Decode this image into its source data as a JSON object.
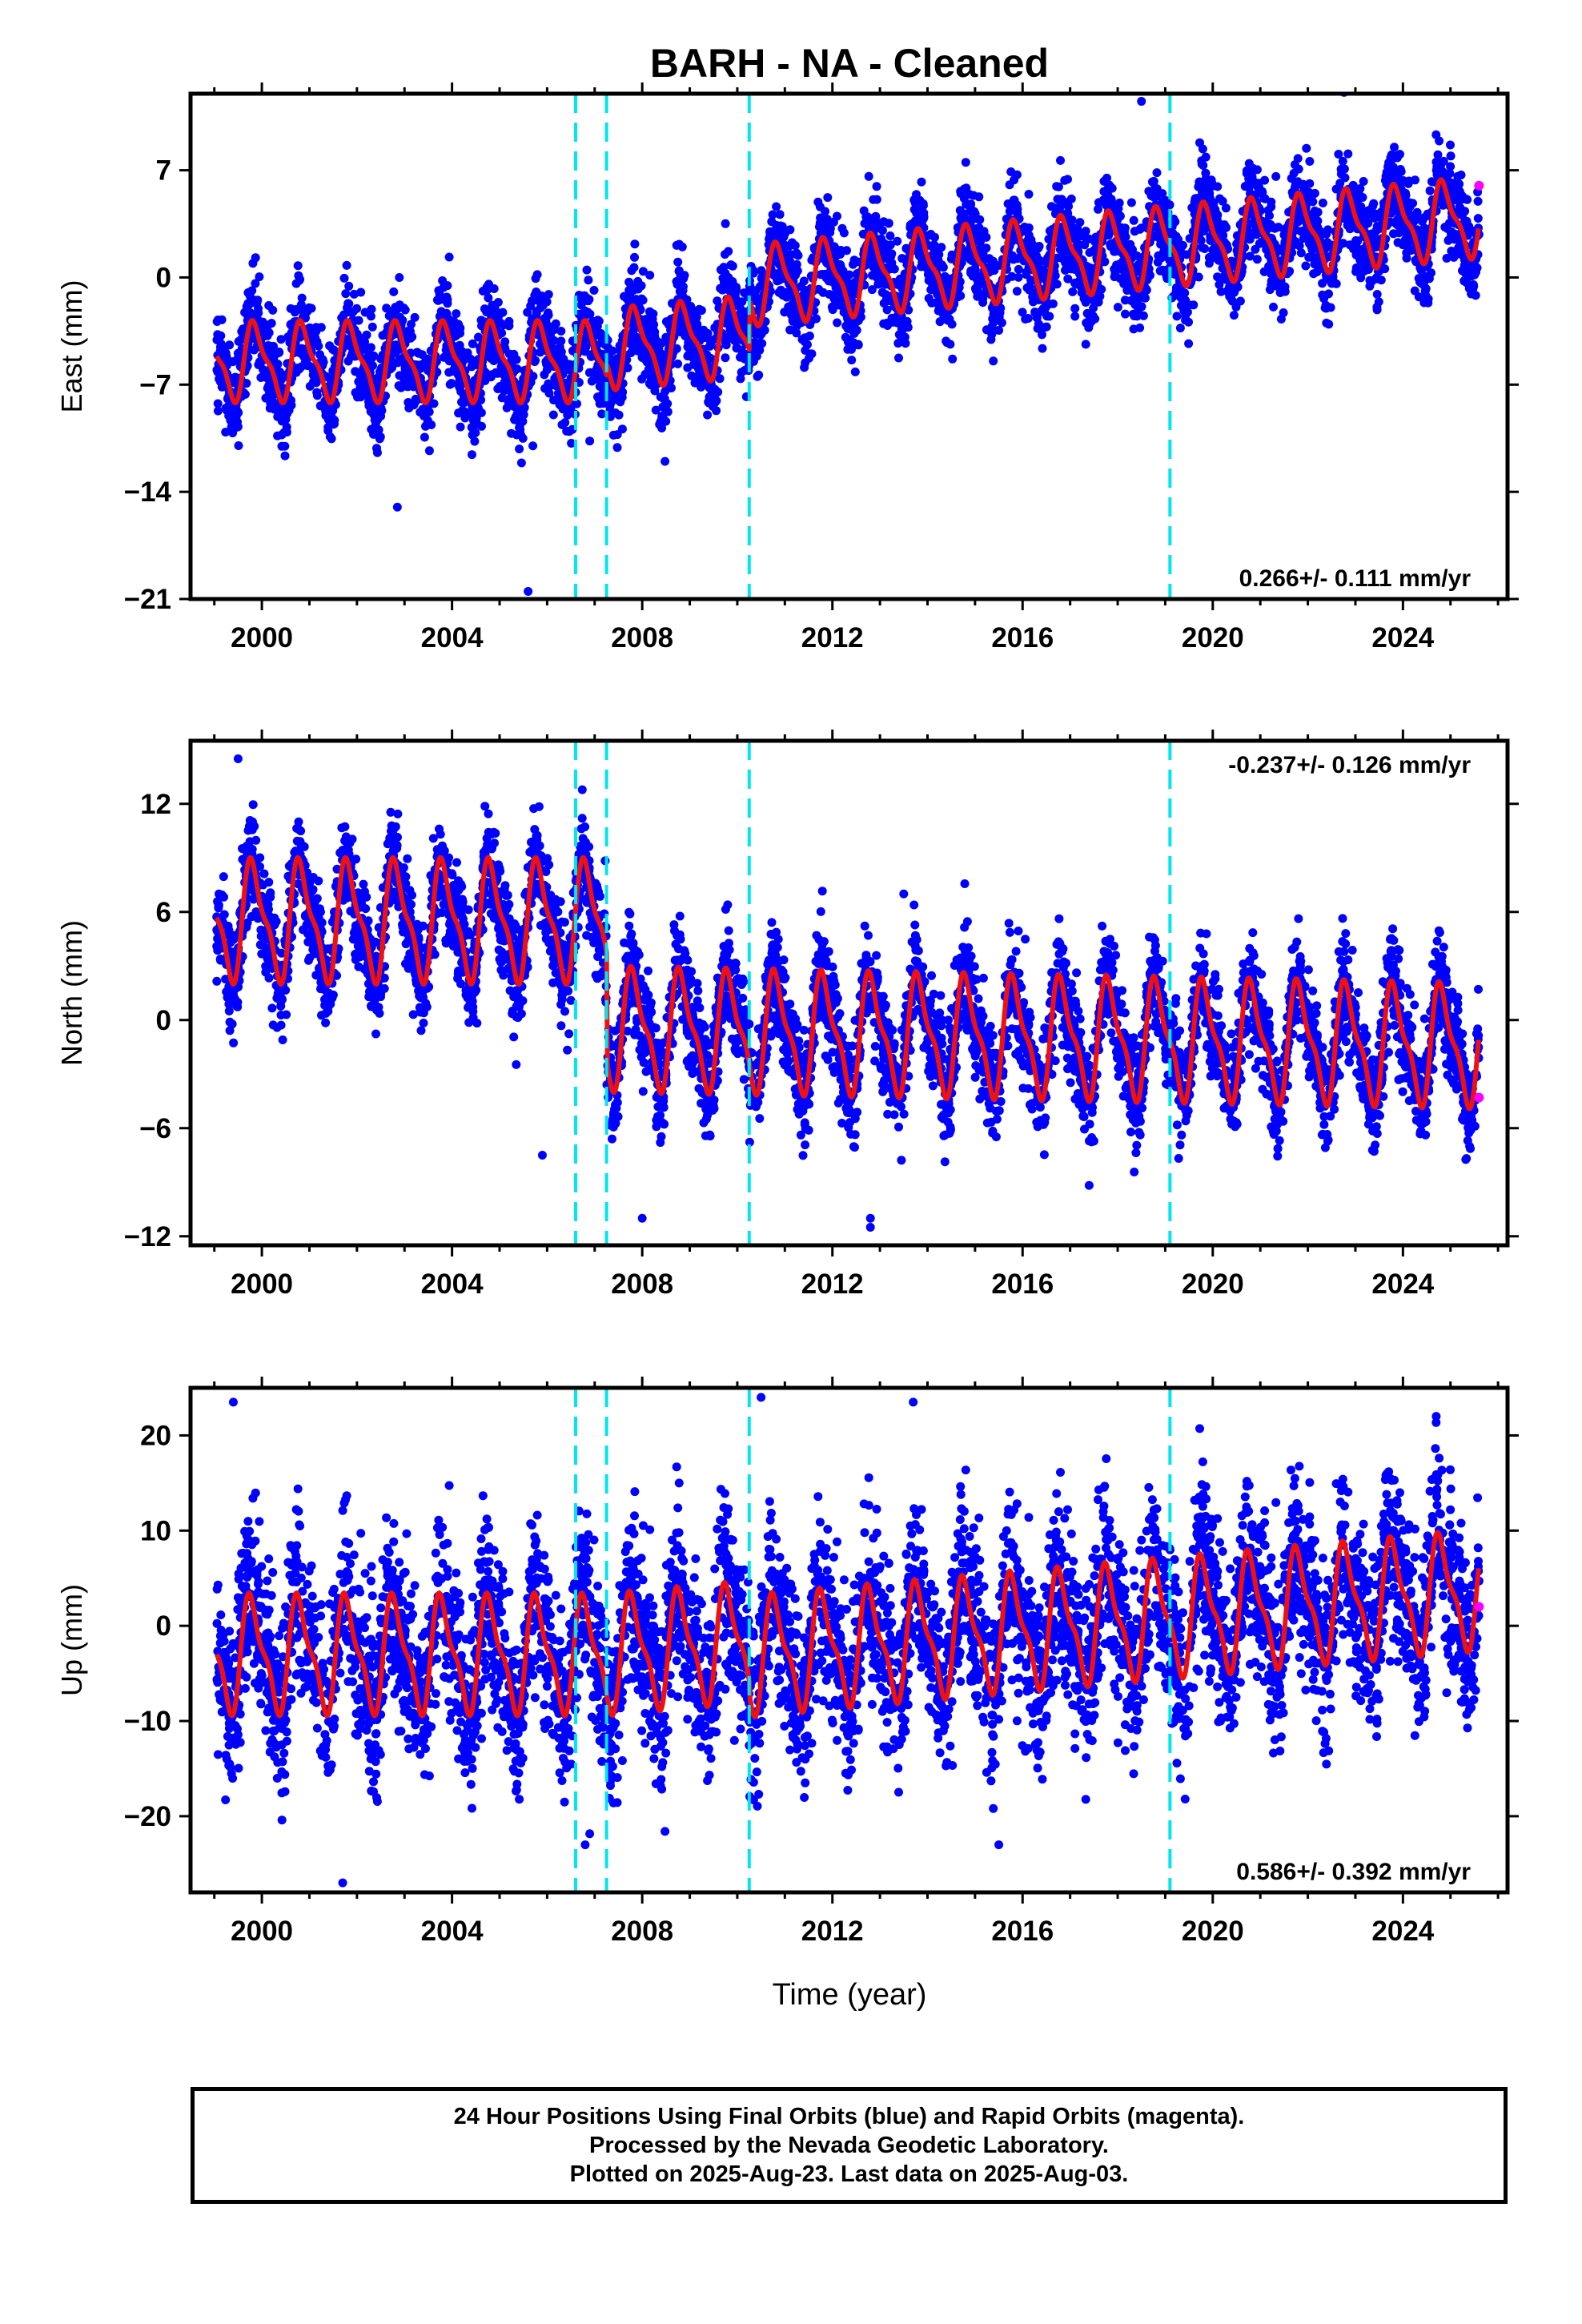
{
  "title": "BARH  - NA - Cleaned",
  "xlabel": "Time (year)",
  "footer": {
    "line1": "24 Hour Positions Using Final Orbits (blue) and Rapid Orbits (magenta).",
    "line2": "Processed by the Nevada Geodetic Laboratory.",
    "line3": "Plotted on 2025-Aug-23. Last data on 2025-Aug-03."
  },
  "colors": {
    "final": "#0000ff",
    "rapid": "#ff00ff",
    "model": "#ee1111",
    "breaks": "#00e5ee"
  },
  "chart_data": [
    {
      "type": "scatter",
      "ylabel": "East (mm)",
      "xlim": [
        1998.5,
        2026.2
      ],
      "ylim": [
        -21,
        12
      ],
      "xticks": [
        2000,
        2004,
        2008,
        2012,
        2016,
        2020,
        2024
      ],
      "yticks": [
        7,
        0,
        -7,
        -14,
        -21
      ],
      "rate_text": "0.266+/- 0.111 mm/yr",
      "rate_position": "bottom-right",
      "breaks": [
        2006.6,
        2007.25,
        2010.25,
        2019.1
      ],
      "model": {
        "start": 1999.05,
        "end": 2025.6,
        "offset_start": -5.5,
        "trend_pre": 0.0,
        "trend_post": 0.29,
        "amplitude": 2.3,
        "phase": 0.62,
        "steps": [
          [
            2007.25,
            0.8
          ],
          [
            2010.25,
            3.3
          ]
        ]
      },
      "scatter_sigma": 1.5,
      "rapid_last": [
        2025.6,
        6.0
      ],
      "outliers": [
        [
          2005.6,
          -20.5
        ],
        [
          2002.85,
          -15
        ],
        [
          2005.7,
          -11
        ],
        [
          2018.5,
          11.5
        ],
        [
          2006.6,
          -7.5
        ]
      ]
    },
    {
      "type": "scatter",
      "ylabel": "North (mm)",
      "xlim": [
        1998.5,
        2026.2
      ],
      "ylim": [
        -12.5,
        15.5
      ],
      "xticks": [
        2000,
        2004,
        2008,
        2012,
        2016,
        2020,
        2024
      ],
      "yticks": [
        12,
        6,
        0,
        -6,
        -12
      ],
      "rate_text": "-0.237+/- 0.126 mm/yr",
      "rate_position": "top-right",
      "breaks": [
        2006.6,
        2007.25,
        2010.25,
        2019.1
      ],
      "model": {
        "start": 1999.05,
        "end": 2025.6,
        "offset_start": 5.5,
        "trend_pre": 0.0,
        "trend_post": -0.05,
        "amplitude": 3.0,
        "phase": 0.58,
        "steps": [
          [
            2007.25,
            -6.0
          ]
        ]
      },
      "scatter_sigma": 1.4,
      "rapid_last": [
        2025.6,
        -4.3
      ],
      "outliers": [
        [
          2012.8,
          -11.5
        ],
        [
          2012.8,
          -11
        ],
        [
          2008.0,
          -11
        ],
        [
          2005.9,
          -7.5
        ],
        [
          2013.5,
          7.0
        ],
        [
          1999.5,
          14.5
        ]
      ]
    },
    {
      "type": "scatter",
      "ylabel": "Up (mm)",
      "xlim": [
        1998.5,
        2026.2
      ],
      "ylim": [
        -28,
        25
      ],
      "xticks": [
        2000,
        2004,
        2008,
        2012,
        2016,
        2020,
        2024
      ],
      "yticks": [
        20,
        10,
        0,
        -10,
        -20
      ],
      "rate_text": "0.586+/- 0.392 mm/yr",
      "rate_position": "bottom-right",
      "breaks": [
        2006.6,
        2007.25,
        2010.25,
        2019.1
      ],
      "model": {
        "start": 1999.05,
        "end": 2025.6,
        "offset_start": -3.0,
        "trend_pre": 0.0,
        "trend_post": 0.45,
        "amplitude": 5.5,
        "phase": 0.55,
        "steps": [
          [
            2010.25,
            -1.5
          ]
        ]
      },
      "scatter_sigma": 4.5,
      "rapid_last": [
        2025.6,
        2.0
      ],
      "outliers": [
        [
          1999.4,
          23.5
        ],
        [
          2010.5,
          24
        ],
        [
          2013.7,
          23.5
        ],
        [
          2001.7,
          -27
        ],
        [
          2006.8,
          -23
        ],
        [
          2015.5,
          -23
        ],
        [
          2024.7,
          22
        ]
      ]
    }
  ]
}
